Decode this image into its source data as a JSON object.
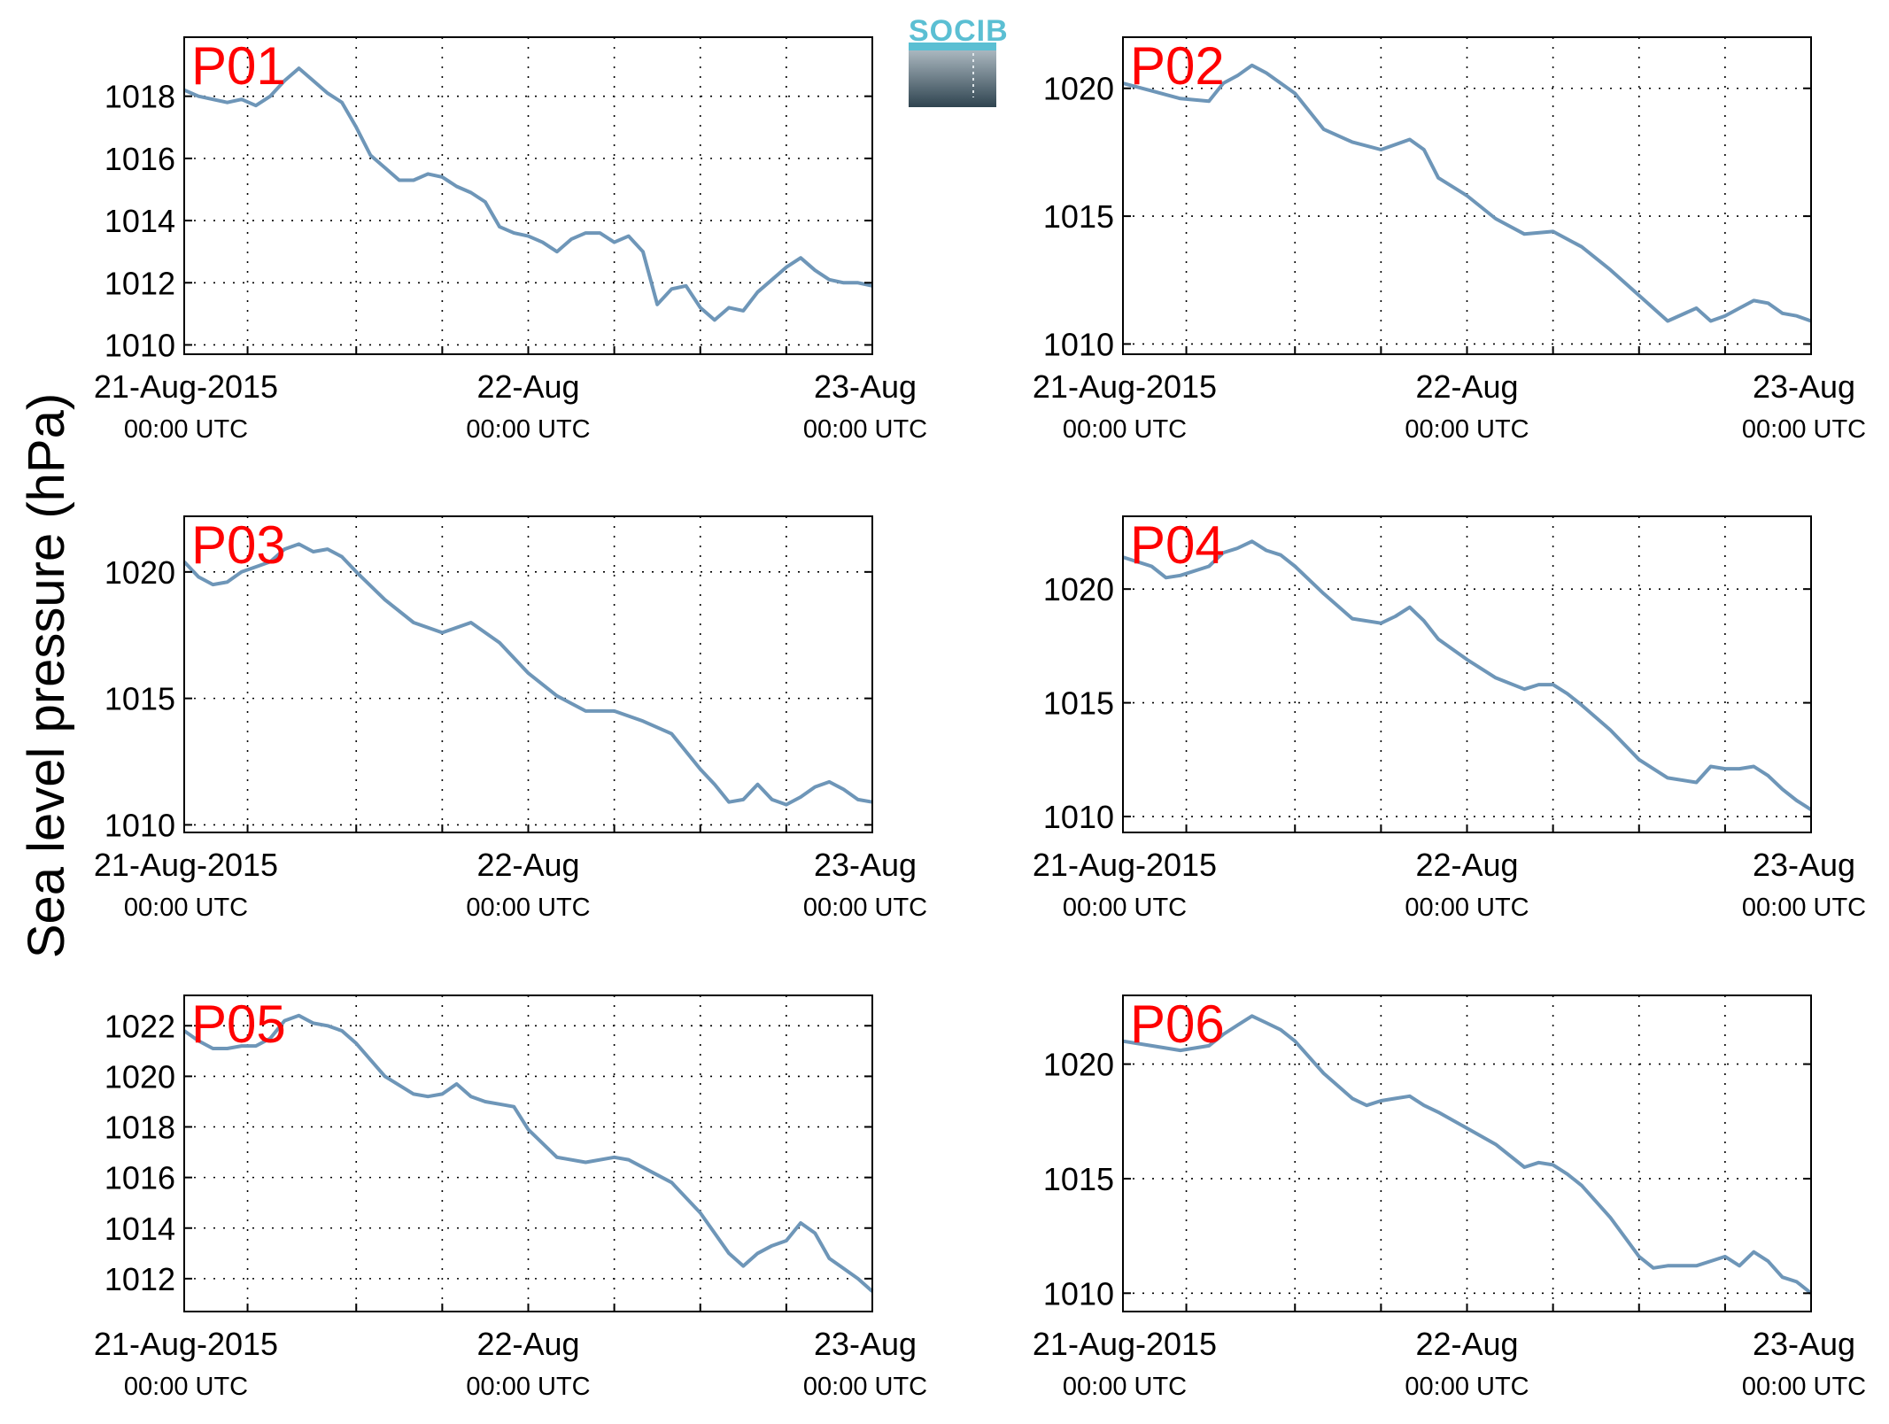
{
  "figure": {
    "ylabel": "Sea level pressure (hPa)",
    "logo_text": "SOCIB"
  },
  "chart_data": [
    {
      "type": "line",
      "title": "P01",
      "ylabel": "",
      "x_ticks": [
        "21-Aug-2015",
        "22-Aug",
        "23-Aug"
      ],
      "x_tick_sub": [
        "00:00 UTC",
        "00:00 UTC",
        "00:00 UTC"
      ],
      "x_range_hours": [
        0,
        48
      ],
      "ylim": [
        1009.7,
        1019.9
      ],
      "yticks": [
        1010,
        1012,
        1014,
        1016,
        1018
      ],
      "grid": true,
      "color": "#6e96b8",
      "series": [
        {
          "x": [
            0,
            1,
            2,
            3,
            4,
            5,
            6,
            7,
            8,
            9,
            10,
            11,
            12,
            13,
            14,
            15,
            16,
            17,
            18,
            19,
            20,
            21,
            22,
            23,
            24,
            25,
            26,
            27,
            28,
            29,
            30,
            31,
            32,
            33,
            34,
            35,
            36,
            37,
            38,
            39,
            40,
            41,
            42,
            43,
            44,
            45,
            46,
            47,
            48
          ],
          "y": [
            1018.2,
            1018.0,
            1017.9,
            1017.8,
            1017.9,
            1017.7,
            1018.0,
            1018.5,
            1018.9,
            1018.5,
            1018.1,
            1017.8,
            1017.0,
            1016.1,
            1015.7,
            1015.3,
            1015.3,
            1015.5,
            1015.4,
            1015.1,
            1014.9,
            1014.6,
            1013.8,
            1013.6,
            1013.5,
            1013.3,
            1013.0,
            1013.4,
            1013.6,
            1013.6,
            1013.3,
            1013.5,
            1013.0,
            1011.3,
            1011.8,
            1011.9,
            1011.2,
            1010.8,
            1011.2,
            1011.1,
            1011.7,
            1012.1,
            1012.5,
            1012.8,
            1012.4,
            1012.1,
            1012.0,
            1012.0,
            1011.9
          ]
        }
      ]
    },
    {
      "type": "line",
      "title": "P02",
      "ylabel": "",
      "x_ticks": [
        "21-Aug-2015",
        "22-Aug",
        "23-Aug"
      ],
      "x_tick_sub": [
        "00:00 UTC",
        "00:00 UTC",
        "00:00 UTC"
      ],
      "x_range_hours": [
        0,
        48
      ],
      "ylim": [
        1009.6,
        1022.0
      ],
      "yticks": [
        1010,
        1015,
        1020
      ],
      "grid": true,
      "color": "#6e96b8",
      "series": [
        {
          "x": [
            0,
            2,
            4,
            6,
            7,
            8,
            9,
            10,
            12,
            14,
            16,
            18,
            20,
            21,
            22,
            24,
            26,
            28,
            30,
            32,
            34,
            36,
            38,
            40,
            41,
            42,
            43,
            44,
            45,
            46,
            47,
            48
          ],
          "y": [
            1020.2,
            1019.9,
            1019.6,
            1019.5,
            1020.2,
            1020.5,
            1020.9,
            1020.6,
            1019.8,
            1018.4,
            1017.9,
            1017.6,
            1018.0,
            1017.6,
            1016.5,
            1015.8,
            1014.9,
            1014.3,
            1014.4,
            1013.8,
            1012.9,
            1011.9,
            1010.9,
            1011.4,
            1010.9,
            1011.1,
            1011.4,
            1011.7,
            1011.6,
            1011.2,
            1011.1,
            1010.9
          ]
        }
      ]
    },
    {
      "type": "line",
      "title": "P03",
      "ylabel": "",
      "x_ticks": [
        "21-Aug-2015",
        "22-Aug",
        "23-Aug"
      ],
      "x_tick_sub": [
        "00:00 UTC",
        "00:00 UTC",
        "00:00 UTC"
      ],
      "x_range_hours": [
        0,
        48
      ],
      "ylim": [
        1009.7,
        1022.2
      ],
      "yticks": [
        1010,
        1015,
        1020
      ],
      "grid": true,
      "color": "#6e96b8",
      "series": [
        {
          "x": [
            0,
            1,
            2,
            3,
            4,
            5,
            6,
            7,
            8,
            9,
            10,
            11,
            12,
            14,
            16,
            18,
            20,
            22,
            24,
            26,
            28,
            30,
            32,
            34,
            36,
            37,
            38,
            39,
            40,
            41,
            42,
            43,
            44,
            45,
            46,
            47,
            48
          ],
          "y": [
            1020.4,
            1019.8,
            1019.5,
            1019.6,
            1020.0,
            1020.2,
            1020.4,
            1020.9,
            1021.1,
            1020.8,
            1020.9,
            1020.6,
            1020.0,
            1018.9,
            1018.0,
            1017.6,
            1018.0,
            1017.2,
            1016.0,
            1015.1,
            1014.5,
            1014.5,
            1014.1,
            1013.6,
            1012.2,
            1011.6,
            1010.9,
            1011.0,
            1011.6,
            1011.0,
            1010.8,
            1011.1,
            1011.5,
            1011.7,
            1011.4,
            1011.0,
            1010.9
          ]
        }
      ]
    },
    {
      "type": "line",
      "title": "P04",
      "ylabel": "",
      "x_ticks": [
        "21-Aug-2015",
        "22-Aug",
        "23-Aug"
      ],
      "x_tick_sub": [
        "00:00 UTC",
        "00:00 UTC",
        "00:00 UTC"
      ],
      "x_range_hours": [
        0,
        48
      ],
      "ylim": [
        1009.3,
        1023.2
      ],
      "yticks": [
        1010,
        1015,
        1020
      ],
      "grid": true,
      "color": "#6e96b8",
      "series": [
        {
          "x": [
            0,
            2,
            3,
            4,
            6,
            7,
            8,
            9,
            10,
            11,
            12,
            14,
            16,
            18,
            19,
            20,
            21,
            22,
            24,
            26,
            28,
            29,
            30,
            31,
            32,
            34,
            36,
            38,
            40,
            41,
            42,
            43,
            44,
            45,
            46,
            47,
            48
          ],
          "y": [
            1021.4,
            1021.0,
            1020.5,
            1020.6,
            1021.0,
            1021.6,
            1021.8,
            1022.1,
            1021.7,
            1021.5,
            1021.0,
            1019.8,
            1018.7,
            1018.5,
            1018.8,
            1019.2,
            1018.6,
            1017.8,
            1016.9,
            1016.1,
            1015.6,
            1015.8,
            1015.8,
            1015.4,
            1014.9,
            1013.8,
            1012.5,
            1011.7,
            1011.5,
            1012.2,
            1012.1,
            1012.1,
            1012.2,
            1011.8,
            1011.2,
            1010.7,
            1010.3
          ]
        }
      ]
    },
    {
      "type": "line",
      "title": "P05",
      "ylabel": "",
      "x_ticks": [
        "21-Aug-2015",
        "22-Aug",
        "23-Aug"
      ],
      "x_tick_sub": [
        "00:00 UTC",
        "00:00 UTC",
        "00:00 UTC"
      ],
      "x_range_hours": [
        0,
        48
      ],
      "ylim": [
        1010.7,
        1023.2
      ],
      "yticks": [
        1012,
        1014,
        1016,
        1018,
        1020,
        1022
      ],
      "grid": true,
      "color": "#6e96b8",
      "series": [
        {
          "x": [
            0,
            1,
            2,
            3,
            4,
            5,
            6,
            7,
            8,
            9,
            10,
            11,
            12,
            14,
            16,
            17,
            18,
            19,
            20,
            21,
            22,
            23,
            24,
            26,
            28,
            30,
            31,
            32,
            34,
            36,
            38,
            39,
            40,
            41,
            42,
            43,
            44,
            45,
            46,
            47,
            48
          ],
          "y": [
            1021.8,
            1021.4,
            1021.1,
            1021.1,
            1021.2,
            1021.2,
            1021.5,
            1022.2,
            1022.4,
            1022.1,
            1022.0,
            1021.8,
            1021.3,
            1020.0,
            1019.3,
            1019.2,
            1019.3,
            1019.7,
            1019.2,
            1019.0,
            1018.9,
            1018.8,
            1017.9,
            1016.8,
            1016.6,
            1016.8,
            1016.7,
            1016.4,
            1015.8,
            1014.6,
            1013.0,
            1012.5,
            1013.0,
            1013.3,
            1013.5,
            1014.2,
            1013.8,
            1012.8,
            1012.4,
            1012.0,
            1011.5
          ]
        }
      ]
    },
    {
      "type": "line",
      "title": "P06",
      "ylabel": "",
      "x_ticks": [
        "21-Aug-2015",
        "22-Aug",
        "23-Aug"
      ],
      "x_tick_sub": [
        "00:00 UTC",
        "00:00 UTC",
        "00:00 UTC"
      ],
      "x_range_hours": [
        0,
        48
      ],
      "ylim": [
        1009.2,
        1023.0
      ],
      "yticks": [
        1010,
        1015,
        1020
      ],
      "grid": true,
      "color": "#6e96b8",
      "series": [
        {
          "x": [
            0,
            2,
            4,
            6,
            7,
            8,
            9,
            10,
            11,
            12,
            14,
            16,
            17,
            18,
            19,
            20,
            21,
            22,
            24,
            26,
            28,
            29,
            30,
            31,
            32,
            34,
            36,
            37,
            38,
            40,
            41,
            42,
            43,
            44,
            45,
            46,
            47,
            48
          ],
          "y": [
            1021.0,
            1020.8,
            1020.6,
            1020.8,
            1021.3,
            1021.7,
            1022.1,
            1021.8,
            1021.5,
            1021.0,
            1019.6,
            1018.5,
            1018.2,
            1018.4,
            1018.5,
            1018.6,
            1018.2,
            1017.9,
            1017.2,
            1016.5,
            1015.5,
            1015.7,
            1015.6,
            1015.2,
            1014.7,
            1013.3,
            1011.6,
            1011.1,
            1011.2,
            1011.2,
            1011.4,
            1011.6,
            1011.2,
            1011.8,
            1011.4,
            1010.7,
            1010.5,
            1010.0
          ]
        }
      ]
    }
  ]
}
